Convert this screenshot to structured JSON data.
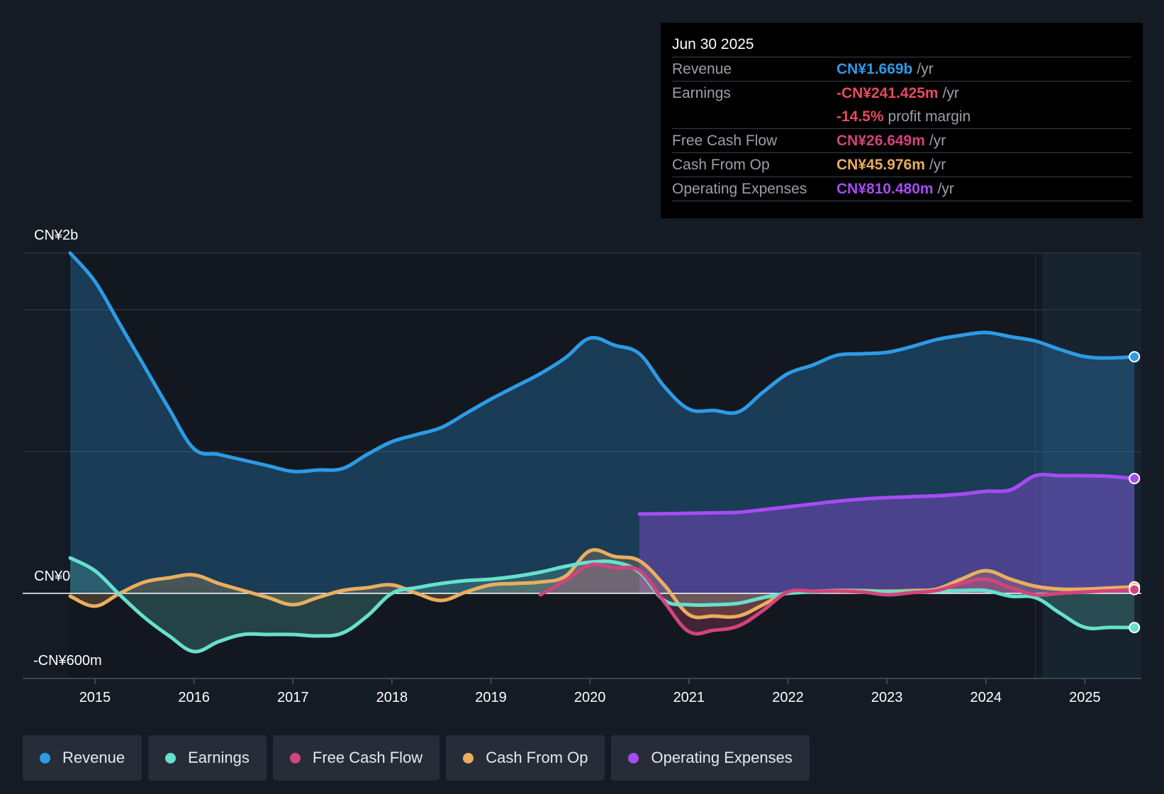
{
  "tooltip": {
    "date": "Jun 30 2025",
    "rows": [
      {
        "label": "Revenue",
        "value": "CN¥1.669b",
        "unit": "/yr",
        "color": "#2d9be5"
      },
      {
        "label": "Earnings",
        "value": "-CN¥241.425m",
        "unit": "/yr",
        "color": "#e84a5f"
      },
      {
        "label": "",
        "value": "-14.5%",
        "unit": "profit margin",
        "color": "#e84a5f"
      },
      {
        "label": "Free Cash Flow",
        "value": "CN¥26.649m",
        "unit": "/yr",
        "color": "#d2447c"
      },
      {
        "label": "Cash From Op",
        "value": "CN¥45.976m",
        "unit": "/yr",
        "color": "#eaae5e"
      },
      {
        "label": "Operating Expenses",
        "value": "CN¥810.480m",
        "unit": "/yr",
        "color": "#a64cf3"
      }
    ]
  },
  "axis": {
    "y_top_label": "CN¥2b",
    "y_zero_label": "CN¥0",
    "y_bottom_label": "-CN¥600m"
  },
  "legend": [
    {
      "label": "Revenue",
      "color": "#2d9be5"
    },
    {
      "label": "Earnings",
      "color": "#67e0cd"
    },
    {
      "label": "Free Cash Flow",
      "color": "#d2447c"
    },
    {
      "label": "Cash From Op",
      "color": "#eaae5e"
    },
    {
      "label": "Operating Expenses",
      "color": "#a64cf3"
    }
  ],
  "chart_data": {
    "type": "line",
    "title": "",
    "xlabel": "",
    "ylabel": "",
    "ylim": [
      -600,
      2400
    ],
    "unit": "CN¥ millions",
    "x_ticks": [
      "2015",
      "2016",
      "2017",
      "2018",
      "2019",
      "2020",
      "2021",
      "2022",
      "2023",
      "2024",
      "2025"
    ],
    "x_range": [
      2014.27,
      2025.57
    ],
    "forecast_start": 2024.5,
    "series": [
      {
        "name": "Revenue",
        "color": "#2d9be5",
        "fill": true,
        "x": [
          2014.75,
          2015.0,
          2015.25,
          2015.5,
          2015.75,
          2016.0,
          2016.25,
          2016.5,
          2016.75,
          2017.0,
          2017.25,
          2017.5,
          2017.75,
          2018.0,
          2018.25,
          2018.5,
          2018.75,
          2019.0,
          2019.25,
          2019.5,
          2019.75,
          2020.0,
          2020.25,
          2020.5,
          2020.75,
          2021.0,
          2021.25,
          2021.5,
          2021.75,
          2022.0,
          2022.25,
          2022.5,
          2022.75,
          2023.0,
          2023.25,
          2023.5,
          2023.75,
          2024.0,
          2024.25,
          2024.5,
          2024.75,
          2025.0,
          2025.25,
          2025.5
        ],
        "values": [
          2400,
          2200,
          1900,
          1600,
          1300,
          1020,
          980,
          940,
          900,
          860,
          870,
          880,
          980,
          1070,
          1120,
          1170,
          1270,
          1370,
          1460,
          1550,
          1660,
          1800,
          1750,
          1690,
          1460,
          1300,
          1290,
          1280,
          1420,
          1550,
          1610,
          1680,
          1690,
          1700,
          1740,
          1790,
          1820,
          1840,
          1810,
          1780,
          1720,
          1670,
          1660,
          1669
        ]
      },
      {
        "name": "Operating Expenses",
        "color": "#a64cf3",
        "fill": true,
        "x": [
          2020.5,
          2020.75,
          2021.0,
          2021.25,
          2021.5,
          2021.75,
          2022.0,
          2022.25,
          2022.5,
          2022.75,
          2023.0,
          2023.25,
          2023.5,
          2023.75,
          2024.0,
          2024.25,
          2024.5,
          2024.75,
          2025.0,
          2025.25,
          2025.5
        ],
        "values": [
          560,
          562,
          565,
          568,
          572,
          590,
          610,
          630,
          650,
          665,
          675,
          682,
          688,
          700,
          720,
          730,
          830,
          830,
          830,
          825,
          810
        ]
      },
      {
        "name": "Cash From Op",
        "color": "#eaae5e",
        "fill": true,
        "x": [
          2014.75,
          2015.0,
          2015.25,
          2015.5,
          2015.75,
          2016.0,
          2016.25,
          2016.5,
          2016.75,
          2017.0,
          2017.25,
          2017.5,
          2017.75,
          2018.0,
          2018.25,
          2018.5,
          2018.75,
          2019.0,
          2019.25,
          2019.5,
          2019.75,
          2020.0,
          2020.25,
          2020.5,
          2020.75,
          2021.0,
          2021.25,
          2021.5,
          2021.75,
          2022.0,
          2022.25,
          2022.5,
          2022.75,
          2023.0,
          2023.25,
          2023.5,
          2023.75,
          2024.0,
          2024.25,
          2024.5,
          2024.75,
          2025.0,
          2025.25,
          2025.5
        ],
        "values": [
          -20,
          -90,
          0,
          80,
          110,
          130,
          70,
          20,
          -30,
          -80,
          -30,
          20,
          40,
          60,
          0,
          -50,
          10,
          60,
          70,
          80,
          120,
          300,
          260,
          230,
          60,
          -150,
          -160,
          -160,
          -80,
          10,
          15,
          20,
          20,
          15,
          20,
          30,
          100,
          160,
          100,
          50,
          30,
          30,
          38,
          46
        ]
      },
      {
        "name": "Earnings",
        "color": "#67e0cd",
        "fill": true,
        "x": [
          2014.75,
          2015.0,
          2015.25,
          2015.5,
          2015.75,
          2016.0,
          2016.25,
          2016.5,
          2016.75,
          2017.0,
          2017.25,
          2017.5,
          2017.75,
          2018.0,
          2018.25,
          2018.5,
          2018.75,
          2019.0,
          2019.25,
          2019.5,
          2019.75,
          2020.0,
          2020.25,
          2020.5,
          2020.75,
          2021.0,
          2021.25,
          2021.5,
          2021.75,
          2022.0,
          2022.25,
          2022.5,
          2022.75,
          2023.0,
          2023.25,
          2023.5,
          2023.75,
          2024.0,
          2024.25,
          2024.5,
          2024.75,
          2025.0,
          2025.25,
          2025.5
        ],
        "values": [
          250,
          160,
          -10,
          -170,
          -300,
          -410,
          -340,
          -290,
          -290,
          -290,
          -300,
          -280,
          -160,
          0,
          40,
          70,
          90,
          100,
          120,
          150,
          190,
          220,
          220,
          150,
          -50,
          -80,
          -80,
          -70,
          -30,
          0,
          10,
          15,
          15,
          10,
          10,
          15,
          20,
          20,
          -20,
          -30,
          -140,
          -240,
          -240,
          -241
        ]
      },
      {
        "name": "Free Cash Flow",
        "color": "#d2447c",
        "fill": true,
        "x": [
          2019.5,
          2019.75,
          2020.0,
          2020.25,
          2020.5,
          2020.75,
          2021.0,
          2021.25,
          2021.5,
          2021.75,
          2022.0,
          2022.25,
          2022.5,
          2022.75,
          2023.0,
          2023.25,
          2023.5,
          2023.75,
          2024.0,
          2024.25,
          2024.5,
          2024.75,
          2025.0,
          2025.25,
          2025.5
        ],
        "values": [
          -10,
          90,
          200,
          180,
          160,
          -60,
          -270,
          -260,
          -230,
          -120,
          10,
          15,
          15,
          10,
          -10,
          5,
          20,
          70,
          100,
          40,
          -10,
          0,
          10,
          18,
          27
        ]
      }
    ],
    "tooltip_date": "Jun 30 2025"
  }
}
